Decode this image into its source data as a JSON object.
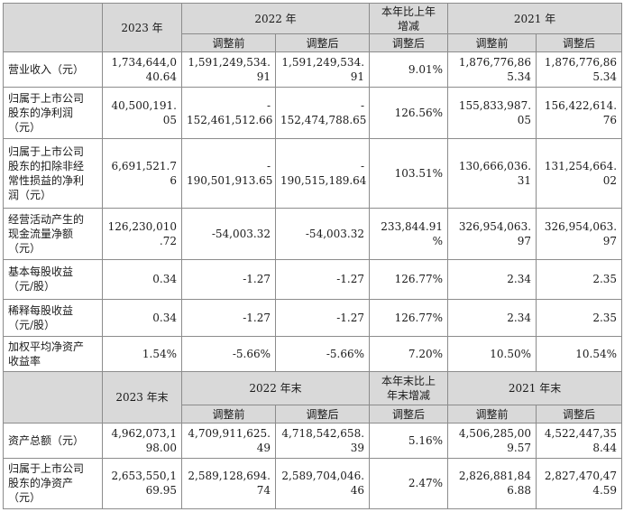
{
  "header1": {
    "year2023": "2023 年",
    "year2022": "2022 年",
    "change": "本年比上年\n增减",
    "year2021": "2021 年",
    "before": "调整前",
    "after": "调整后",
    "change_after": "调整后"
  },
  "rows1": [
    {
      "label": "营业收入（元）",
      "v2023": "1,734,644,0\n40.64",
      "v2022_before": "1,591,249,534.\n91",
      "v2022_after": "1,591,249,534.\n91",
      "change": "9.01%",
      "v2021_before": "1,876,776,86\n5.34",
      "v2021_after": "1,876,776,86\n5.34"
    },
    {
      "label": "归属于上市公司\n股东的净利润\n（元）",
      "v2023": "40,500,191.\n05",
      "v2022_before": "-\n152,461,512.66",
      "v2022_after": "-\n152,474,788.65",
      "change": "126.56%",
      "v2021_before": "155,833,987.\n05",
      "v2021_after": "156,422,614.\n76"
    },
    {
      "label": "归属于上市公司\n股东的扣除非经\n常性损益的净利\n润（元）",
      "v2023": "6,691,521.7\n6",
      "v2022_before": "-\n190,501,913.65",
      "v2022_after": "-\n190,515,189.64",
      "change": "103.51%",
      "v2021_before": "130,666,036.\n31",
      "v2021_after": "131,254,664.\n02"
    },
    {
      "label": "经营活动产生的\n现金流量净额\n（元）",
      "v2023": "126,230,010\n.72",
      "v2022_before": "-54,003.32",
      "v2022_after": "-54,003.32",
      "change": "233,844.91\n%",
      "v2021_before": "326,954,063.\n97",
      "v2021_after": "326,954,063.\n97"
    },
    {
      "label": "基本每股收益\n（元/股）",
      "v2023": "0.34",
      "v2022_before": "-1.27",
      "v2022_after": "-1.27",
      "change": "126.77%",
      "v2021_before": "2.34",
      "v2021_after": "2.35"
    },
    {
      "label": "稀释每股收益\n（元/股）",
      "v2023": "0.34",
      "v2022_before": "-1.27",
      "v2022_after": "-1.27",
      "change": "126.77%",
      "v2021_before": "2.34",
      "v2021_after": "2.35"
    },
    {
      "label": "加权平均净资产\n收益率",
      "v2023": "1.54%",
      "v2022_before": "-5.66%",
      "v2022_after": "-5.66%",
      "change": "7.20%",
      "v2021_before": "10.50%",
      "v2021_after": "10.54%"
    }
  ],
  "header2": {
    "year2023": "2023 年末",
    "year2022": "2022 年末",
    "change": "本年末比上\n年末增减",
    "year2021": "2021 年末",
    "before": "调整前",
    "after": "调整后",
    "change_after": "调整后"
  },
  "rows2": [
    {
      "label": "资产总额（元）",
      "v2023": "4,962,073,1\n98.00",
      "v2022_before": "4,709,911,625.\n49",
      "v2022_after": "4,718,542,658.\n39",
      "change": "5.16%",
      "v2021_before": "4,506,285,00\n9.57",
      "v2021_after": "4,522,447,35\n8.44"
    },
    {
      "label": "归属于上市公司\n股东的净资产\n（元）",
      "v2023": "2,653,550,1\n69.95",
      "v2022_before": "2,589,128,694.\n74",
      "v2022_after": "2,589,704,046.\n46",
      "change": "2.47%",
      "v2021_before": "2,826,881,84\n6.88",
      "v2021_after": "2,827,470,47\n4.59"
    }
  ]
}
